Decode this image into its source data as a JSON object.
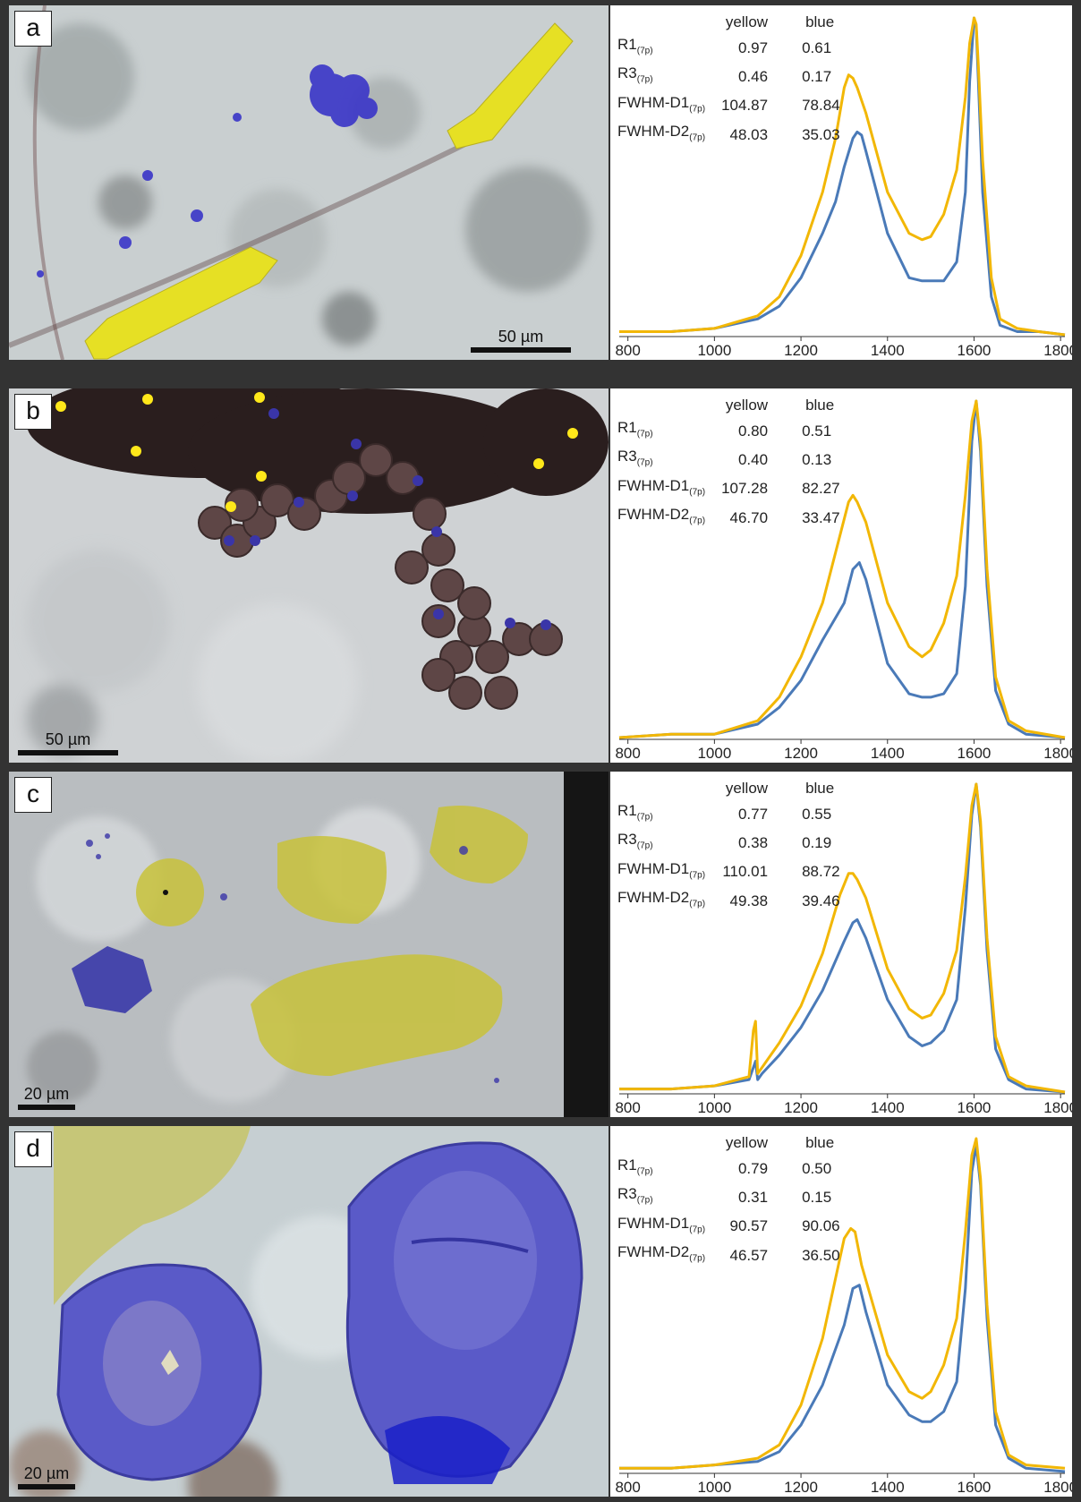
{
  "panels": [
    {
      "letter": "a",
      "scale_label": "50 µm",
      "header": {
        "col1": "yellow",
        "col2": "blue"
      },
      "rows": [
        {
          "name": "R1",
          "sub": "(7p)",
          "yellow": "0.97",
          "blue": "0.61"
        },
        {
          "name": "R3",
          "sub": "(7p)",
          "yellow": "0.46",
          "blue": "0.17"
        },
        {
          "name": "FWHM-D1",
          "sub": "(7p)",
          "yellow": "104.87",
          "blue": "78.84"
        },
        {
          "name": "FWHM-D2",
          "sub": "(7p)",
          "yellow": "48.03",
          "blue": "35.03"
        }
      ]
    },
    {
      "letter": "b",
      "scale_label": "50 µm",
      "header": {
        "col1": "yellow",
        "col2": "blue"
      },
      "rows": [
        {
          "name": "R1",
          "sub": "(7p)",
          "yellow": "0.80",
          "blue": "0.51"
        },
        {
          "name": "R3",
          "sub": "(7p)",
          "yellow": "0.40",
          "blue": "0.13"
        },
        {
          "name": "FWHM-D1",
          "sub": "(7p)",
          "yellow": "107.28",
          "blue": "82.27"
        },
        {
          "name": "FWHM-D2",
          "sub": "(7p)",
          "yellow": "46.70",
          "blue": "33.47"
        }
      ]
    },
    {
      "letter": "c",
      "scale_label": "20 µm",
      "header": {
        "col1": "yellow",
        "col2": "blue"
      },
      "rows": [
        {
          "name": "R1",
          "sub": "(7p)",
          "yellow": "0.77",
          "blue": "0.55"
        },
        {
          "name": "R3",
          "sub": "(7p)",
          "yellow": "0.38",
          "blue": "0.19"
        },
        {
          "name": "FWHM-D1",
          "sub": "(7p)",
          "yellow": "110.01",
          "blue": "88.72"
        },
        {
          "name": "FWHM-D2",
          "sub": "(7p)",
          "yellow": "49.38",
          "blue": "39.46"
        }
      ]
    },
    {
      "letter": "d",
      "scale_label": "20 µm",
      "header": {
        "col1": "yellow",
        "col2": "blue"
      },
      "rows": [
        {
          "name": "R1",
          "sub": "(7p)",
          "yellow": "0.79",
          "blue": "0.50"
        },
        {
          "name": "R3",
          "sub": "(7p)",
          "yellow": "0.31",
          "blue": "0.15"
        },
        {
          "name": "FWHM-D1",
          "sub": "(7p)",
          "yellow": "90.57",
          "blue": "90.06"
        },
        {
          "name": "FWHM-D2",
          "sub": "(7p)",
          "yellow": "46.57",
          "blue": "36.50"
        }
      ]
    }
  ],
  "colors": {
    "yellow": "#f2b705",
    "blue": "#4a7ab8"
  },
  "chart_data": [
    {
      "type": "line",
      "xlim": [
        780,
        1810
      ],
      "x_ticks": [
        "800",
        "1000",
        "1200",
        "1400",
        "1600",
        "1800"
      ],
      "series": [
        {
          "name": "yellow",
          "x": [
            780,
            900,
            1000,
            1100,
            1150,
            1200,
            1250,
            1280,
            1300,
            1310,
            1320,
            1330,
            1350,
            1400,
            1450,
            1480,
            1500,
            1530,
            1560,
            1580,
            1590,
            1600,
            1605,
            1610,
            1620,
            1640,
            1660,
            1700,
            1750,
            1810
          ],
          "y": [
            0.01,
            0.01,
            0.02,
            0.06,
            0.12,
            0.25,
            0.45,
            0.62,
            0.78,
            0.82,
            0.81,
            0.78,
            0.7,
            0.45,
            0.32,
            0.3,
            0.31,
            0.38,
            0.52,
            0.75,
            0.92,
            1.0,
            0.98,
            0.85,
            0.55,
            0.18,
            0.05,
            0.02,
            0.01,
            0.0
          ]
        },
        {
          "name": "blue",
          "x": [
            780,
            900,
            1000,
            1100,
            1150,
            1200,
            1250,
            1280,
            1300,
            1320,
            1330,
            1340,
            1350,
            1400,
            1450,
            1480,
            1500,
            1530,
            1560,
            1580,
            1590,
            1600,
            1605,
            1610,
            1620,
            1640,
            1660,
            1700,
            1750,
            1810
          ],
          "y": [
            0.01,
            0.01,
            0.02,
            0.05,
            0.09,
            0.18,
            0.32,
            0.42,
            0.53,
            0.62,
            0.64,
            0.63,
            0.58,
            0.32,
            0.18,
            0.17,
            0.17,
            0.17,
            0.23,
            0.45,
            0.8,
            1.0,
            0.97,
            0.8,
            0.45,
            0.12,
            0.03,
            0.01,
            0.01,
            0.0
          ]
        }
      ]
    },
    {
      "type": "line",
      "xlim": [
        780,
        1810
      ],
      "x_ticks": [
        "800",
        "1000",
        "1200",
        "1400",
        "1600",
        "1800"
      ],
      "series": [
        {
          "name": "yellow",
          "x": [
            780,
            900,
            1000,
            1100,
            1150,
            1200,
            1250,
            1290,
            1310,
            1320,
            1330,
            1350,
            1400,
            1450,
            1480,
            1500,
            1530,
            1560,
            1580,
            1595,
            1605,
            1615,
            1630,
            1650,
            1680,
            1720,
            1810
          ],
          "y": [
            0.0,
            0.01,
            0.01,
            0.05,
            0.12,
            0.24,
            0.4,
            0.6,
            0.7,
            0.72,
            0.7,
            0.64,
            0.4,
            0.27,
            0.24,
            0.26,
            0.34,
            0.48,
            0.72,
            0.94,
            1.0,
            0.88,
            0.5,
            0.18,
            0.05,
            0.02,
            0.0
          ]
        },
        {
          "name": "blue",
          "x": [
            780,
            900,
            1000,
            1100,
            1150,
            1200,
            1250,
            1300,
            1320,
            1335,
            1350,
            1400,
            1450,
            1480,
            1500,
            1530,
            1560,
            1580,
            1595,
            1605,
            1615,
            1630,
            1650,
            1680,
            1720,
            1810
          ],
          "y": [
            0.0,
            0.01,
            0.01,
            0.04,
            0.09,
            0.17,
            0.29,
            0.4,
            0.5,
            0.52,
            0.47,
            0.22,
            0.13,
            0.12,
            0.12,
            0.13,
            0.19,
            0.45,
            0.88,
            1.0,
            0.85,
            0.45,
            0.14,
            0.04,
            0.01,
            0.0
          ]
        }
      ]
    },
    {
      "type": "line",
      "xlim": [
        780,
        1810
      ],
      "x_ticks": [
        "800",
        "1000",
        "1200",
        "1400",
        "1600",
        "1800"
      ],
      "series": [
        {
          "name": "yellow",
          "x": [
            780,
            900,
            1000,
            1080,
            1090,
            1095,
            1100,
            1110,
            1150,
            1200,
            1250,
            1290,
            1310,
            1320,
            1330,
            1350,
            1400,
            1450,
            1480,
            1500,
            1530,
            1560,
            1580,
            1595,
            1605,
            1615,
            1630,
            1650,
            1680,
            1720,
            1810
          ],
          "y": [
            0.01,
            0.01,
            0.02,
            0.05,
            0.2,
            0.23,
            0.06,
            0.08,
            0.16,
            0.28,
            0.45,
            0.64,
            0.71,
            0.71,
            0.69,
            0.63,
            0.4,
            0.27,
            0.24,
            0.25,
            0.32,
            0.46,
            0.7,
            0.93,
            1.0,
            0.88,
            0.5,
            0.18,
            0.05,
            0.02,
            0.0
          ]
        },
        {
          "name": "blue",
          "x": [
            780,
            900,
            1000,
            1080,
            1090,
            1095,
            1100,
            1110,
            1150,
            1200,
            1250,
            1300,
            1320,
            1330,
            1350,
            1400,
            1450,
            1480,
            1500,
            1530,
            1560,
            1580,
            1595,
            1605,
            1615,
            1630,
            1650,
            1680,
            1720,
            1810
          ],
          "y": [
            0.01,
            0.01,
            0.02,
            0.04,
            0.08,
            0.1,
            0.04,
            0.06,
            0.12,
            0.21,
            0.33,
            0.49,
            0.55,
            0.56,
            0.5,
            0.3,
            0.18,
            0.15,
            0.16,
            0.2,
            0.3,
            0.6,
            0.9,
            1.0,
            0.86,
            0.46,
            0.14,
            0.04,
            0.01,
            0.0
          ]
        }
      ]
    },
    {
      "type": "line",
      "xlim": [
        780,
        1810
      ],
      "x_ticks": [
        "800",
        "1000",
        "1200",
        "1400",
        "1600",
        "1800"
      ],
      "series": [
        {
          "name": "yellow",
          "x": [
            780,
            900,
            1000,
            1100,
            1150,
            1200,
            1250,
            1280,
            1300,
            1315,
            1325,
            1340,
            1400,
            1450,
            1480,
            1500,
            1530,
            1560,
            1580,
            1595,
            1605,
            1615,
            1630,
            1650,
            1680,
            1720,
            1810
          ],
          "y": [
            0.01,
            0.01,
            0.02,
            0.04,
            0.08,
            0.2,
            0.4,
            0.58,
            0.7,
            0.73,
            0.72,
            0.62,
            0.35,
            0.24,
            0.22,
            0.24,
            0.32,
            0.46,
            0.72,
            0.95,
            1.0,
            0.88,
            0.5,
            0.18,
            0.05,
            0.02,
            0.01
          ]
        },
        {
          "name": "blue",
          "x": [
            780,
            900,
            1000,
            1100,
            1150,
            1200,
            1250,
            1300,
            1320,
            1335,
            1350,
            1400,
            1450,
            1480,
            1500,
            1530,
            1560,
            1580,
            1595,
            1605,
            1615,
            1630,
            1650,
            1680,
            1720,
            1810
          ],
          "y": [
            0.01,
            0.01,
            0.02,
            0.03,
            0.06,
            0.14,
            0.26,
            0.44,
            0.55,
            0.56,
            0.48,
            0.26,
            0.17,
            0.15,
            0.15,
            0.18,
            0.27,
            0.55,
            0.9,
            0.98,
            0.86,
            0.46,
            0.14,
            0.04,
            0.01,
            0.0
          ]
        }
      ]
    }
  ]
}
